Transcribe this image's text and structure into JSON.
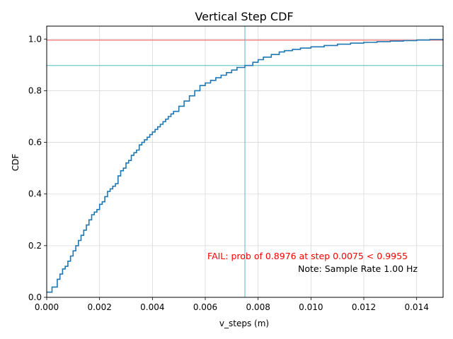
{
  "chart_data": {
    "type": "line",
    "title": "Vertical Step CDF",
    "xlabel": "v_steps (m)",
    "ylabel": "CDF",
    "xlim": [
      0,
      0.015
    ],
    "ylim": [
      0,
      1.05
    ],
    "xticks": [
      0,
      0.002,
      0.004,
      0.006,
      0.008,
      0.01,
      0.012,
      0.014
    ],
    "xtick_labels": [
      "0.000",
      "0.002",
      "0.004",
      "0.006",
      "0.008",
      "0.010",
      "0.012",
      "0.014"
    ],
    "yticks": [
      0,
      0.2,
      0.4,
      0.6,
      0.8,
      1.0
    ],
    "ytick_labels": [
      "0.0",
      "0.2",
      "0.4",
      "0.6",
      "0.8",
      "1.0"
    ],
    "grid": true,
    "series": [
      {
        "color": "#1f77b4",
        "x": [
          0,
          0.0002,
          0.0004,
          0.0005,
          0.0006,
          0.0007,
          0.0008,
          0.0009,
          0.001,
          0.0011,
          0.0012,
          0.0013,
          0.0014,
          0.0015,
          0.0016,
          0.0017,
          0.0018,
          0.0019,
          0.002,
          0.0021,
          0.0022,
          0.0023,
          0.0024,
          0.0025,
          0.0026,
          0.0027,
          0.0028,
          0.0029,
          0.003,
          0.0031,
          0.0032,
          0.0033,
          0.0034,
          0.0035,
          0.0036,
          0.0037,
          0.0038,
          0.0039,
          0.004,
          0.0041,
          0.0042,
          0.0043,
          0.0044,
          0.0045,
          0.0046,
          0.0047,
          0.0048,
          0.005,
          0.0052,
          0.0054,
          0.0056,
          0.0058,
          0.006,
          0.0062,
          0.0064,
          0.0066,
          0.0068,
          0.007,
          0.0072,
          0.0075,
          0.0078,
          0.008,
          0.0082,
          0.0085,
          0.0088,
          0.009,
          0.0093,
          0.0096,
          0.01,
          0.0105,
          0.011,
          0.0115,
          0.012,
          0.0125,
          0.013,
          0.0135,
          0.014,
          0.0145,
          0.015
        ],
        "y": [
          0.02,
          0.04,
          0.07,
          0.09,
          0.11,
          0.12,
          0.14,
          0.16,
          0.18,
          0.2,
          0.22,
          0.24,
          0.26,
          0.28,
          0.3,
          0.32,
          0.33,
          0.34,
          0.36,
          0.37,
          0.39,
          0.41,
          0.42,
          0.43,
          0.44,
          0.47,
          0.49,
          0.5,
          0.52,
          0.53,
          0.55,
          0.56,
          0.57,
          0.59,
          0.6,
          0.61,
          0.62,
          0.63,
          0.64,
          0.65,
          0.66,
          0.67,
          0.68,
          0.69,
          0.7,
          0.71,
          0.72,
          0.74,
          0.76,
          0.78,
          0.8,
          0.82,
          0.83,
          0.84,
          0.85,
          0.86,
          0.87,
          0.88,
          0.89,
          0.8976,
          0.91,
          0.92,
          0.93,
          0.94,
          0.95,
          0.955,
          0.96,
          0.965,
          0.97,
          0.975,
          0.98,
          0.984,
          0.987,
          0.99,
          0.992,
          0.994,
          0.996,
          0.998,
          0.999
        ]
      }
    ],
    "hlines": [
      {
        "y": 0.9955,
        "color": "#ff4d4d"
      },
      {
        "y": 0.8976,
        "color": "#4dbfbf"
      }
    ],
    "vlines": [
      {
        "x": 0.0075,
        "color": "#4dbfbf"
      }
    ],
    "annotations": [
      {
        "text": "FAIL: prob of 0.8976 at step 0.0075 < 0.9955",
        "color": "#ff0000"
      },
      {
        "text": "Note: Sample Rate 1.00 Hz",
        "color": "#000000"
      }
    ]
  }
}
